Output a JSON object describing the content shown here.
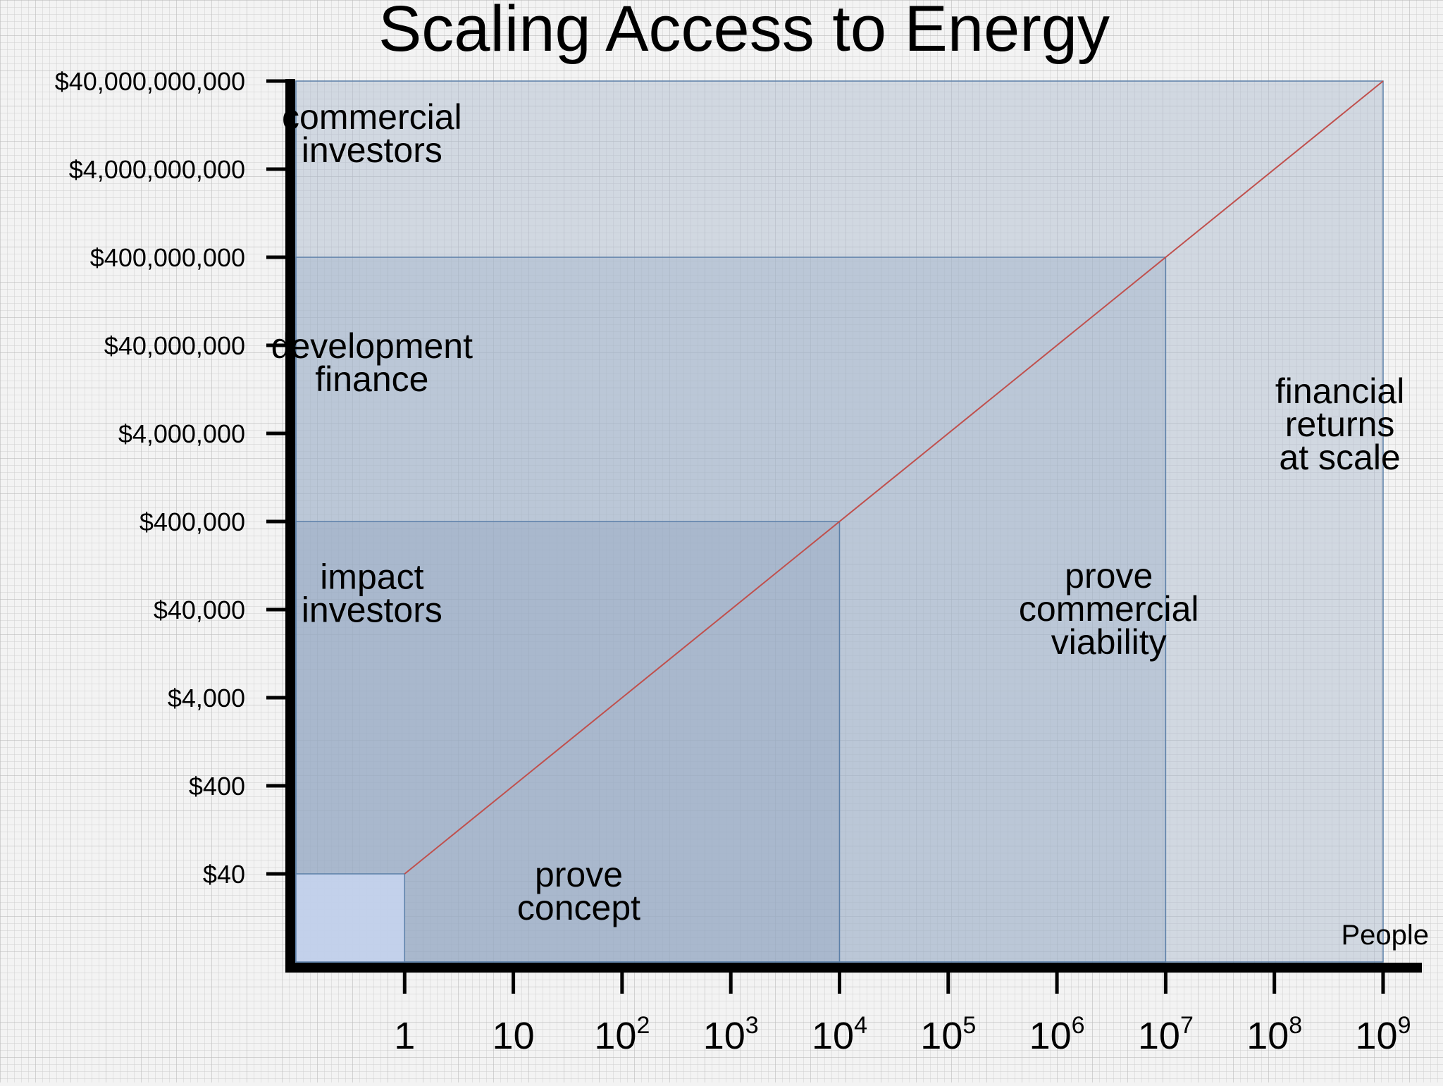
{
  "chart_data": {
    "type": "line",
    "title": "Scaling Access to Energy",
    "xlabel": "People",
    "ylabel": "",
    "x_scale": "log10",
    "y_scale": "log10",
    "xlim": [
      0.1,
      1000000000
    ],
    "ylim": [
      4,
      40000000000
    ],
    "x_ticks": [
      {
        "value": 1,
        "base": "1",
        "exp": ""
      },
      {
        "value": 10,
        "base": "10",
        "exp": ""
      },
      {
        "value": 100,
        "base": "10",
        "exp": "2"
      },
      {
        "value": 1000,
        "base": "10",
        "exp": "3"
      },
      {
        "value": 10000,
        "base": "10",
        "exp": "4"
      },
      {
        "value": 100000,
        "base": "10",
        "exp": "5"
      },
      {
        "value": 1000000,
        "base": "10",
        "exp": "6"
      },
      {
        "value": 10000000,
        "base": "10",
        "exp": "7"
      },
      {
        "value": 100000000,
        "base": "10",
        "exp": "8"
      },
      {
        "value": 1000000000,
        "base": "10",
        "exp": "9"
      }
    ],
    "y_ticks": [
      {
        "value": 40,
        "label": "$40"
      },
      {
        "value": 400,
        "label": "$400"
      },
      {
        "value": 4000,
        "label": "$4,000"
      },
      {
        "value": 40000,
        "label": "$40,000"
      },
      {
        "value": 400000,
        "label": "$400,000"
      },
      {
        "value": 4000000,
        "label": "$4,000,000"
      },
      {
        "value": 40000000,
        "label": "$40,000,000"
      },
      {
        "value": 400000000,
        "label": "$400,000,000"
      },
      {
        "value": 4000000000,
        "label": "$4,000,000,000"
      },
      {
        "value": 40000000000,
        "label": "$40,000,000,000"
      }
    ],
    "series": [
      {
        "name": "scaling line",
        "color": "#c0504d",
        "x": [
          1,
          1000000000
        ],
        "y": [
          40,
          40000000000
        ]
      }
    ],
    "regions": [
      {
        "name": "financial-returns-at-scale",
        "x_to": 1000000000,
        "y_to": 40000000000,
        "fill": "#a9b8cc",
        "opacity": 0.45
      },
      {
        "name": "development-finance",
        "x_to": 10000000,
        "y_to": 400000000,
        "fill": "#9aaec7",
        "opacity": 0.4
      },
      {
        "name": "prove-concept",
        "x_to": 10000,
        "y_to": 400000,
        "fill": "#8ea3bf",
        "opacity": 0.4
      },
      {
        "name": "origin",
        "x_to": 1,
        "y_to": 40,
        "fill": "#c4d2ec",
        "opacity": 0.95
      }
    ],
    "annotations": [
      {
        "lines": [
          "commercial",
          "investors"
        ],
        "x": 0.5,
        "y": 10000000000
      },
      {
        "lines": [
          "development",
          "finance"
        ],
        "x": 0.5,
        "y": 25000000
      },
      {
        "lines": [
          "impact",
          "investors"
        ],
        "x": 0.5,
        "y": 60000
      },
      {
        "lines": [
          "prove",
          "concept"
        ],
        "x": 40,
        "y": 25
      },
      {
        "lines": [
          "prove",
          "commercial",
          "viability"
        ],
        "x": 3000000,
        "y": 40000
      },
      {
        "lines": [
          "financial",
          "returns",
          "at scale"
        ],
        "x": 400000000,
        "y": 5000000
      }
    ]
  }
}
